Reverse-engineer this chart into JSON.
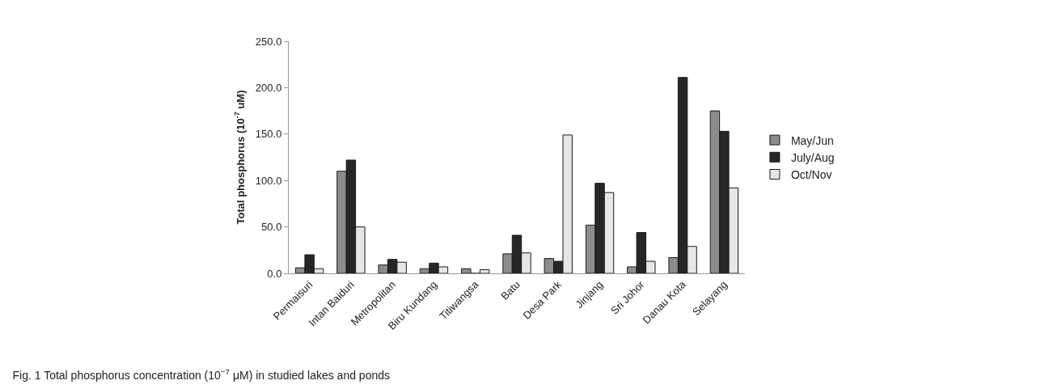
{
  "chart_data": {
    "type": "bar",
    "title": "Fig. 1 Total phosphorus concentration (10$^{−7}$ μM) in studied lakes and ponds",
    "ylabel": "Total phosphorus (10$^{-7}$ uM)",
    "categories": [
      "Permaisuri",
      "Intan Baiduri",
      "Metropolitan",
      "Biru Kundang",
      "Titiwangsa",
      "Batu",
      "Desa Park",
      "Jinjang",
      "Sri Johor",
      "Danau Kota",
      "Selayang"
    ],
    "series": [
      {
        "name": "May/Jun",
        "color": "#8c8c8c",
        "values": [
          6,
          110,
          9,
          5,
          5,
          21,
          16,
          52,
          7,
          17,
          175
        ]
      },
      {
        "name": "July/Aug",
        "color": "#262626",
        "values": [
          20,
          122,
          15,
          11,
          0,
          41,
          13,
          97,
          44,
          211,
          153
        ]
      },
      {
        "name": "Oct/Nov",
        "color": "#e6e6e6",
        "values": [
          5,
          50,
          12,
          7,
          4,
          22,
          149,
          87,
          13,
          29,
          92
        ]
      }
    ],
    "ylim": [
      0,
      250
    ],
    "yticks": [
      {
        "value": 0,
        "label": "0.0"
      },
      {
        "value": 50,
        "label": "50.0"
      },
      {
        "value": 100,
        "label": "100.0"
      },
      {
        "value": 150,
        "label": "150.0"
      },
      {
        "value": 200,
        "label": "200.0"
      },
      {
        "value": 250,
        "label": "250.0"
      }
    ],
    "grid": false,
    "legend": "right"
  }
}
